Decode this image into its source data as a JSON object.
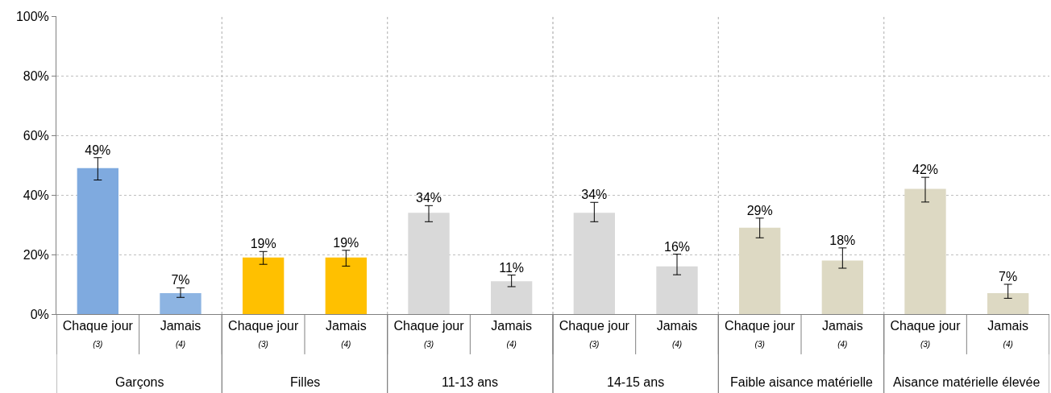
{
  "chart_data": {
    "type": "bar",
    "categories": [
      "Chaque jour\n(3)",
      "Jamais\n(4)",
      "Chaque jour\n(3)",
      "Jamais\n(4)",
      "Chaque jour\n(3)",
      "Jamais\n(4)",
      "Chaque jour\n(3)",
      "Jamais\n(4)",
      "Chaque jour\n(3)",
      "Jamais\n(4)",
      "Chaque jour\n(3)",
      "Jamais\n(4)"
    ],
    "values": [
      49,
      7,
      19,
      19,
      34,
      11,
      34,
      16,
      29,
      18,
      42,
      7
    ],
    "value_labels": [
      "49%",
      "7%",
      "19%",
      "19%",
      "34%",
      "11%",
      "34%",
      "16%",
      "29%",
      "18%",
      "42%",
      "7%"
    ],
    "colors": [
      "#7faadf",
      "#8db4e2",
      "#ffc000",
      "#ffc000",
      "#d9d9d9",
      "#d9d9d9",
      "#d9d9d9",
      "#d9d9d9",
      "#ddd9c3",
      "#ddd9c3",
      "#ddd9c3",
      "#ddd9c3"
    ],
    "errors": [
      [
        45.0,
        52.5
      ],
      [
        5.6,
        8.8
      ],
      [
        16.7,
        21.0
      ],
      [
        16.1,
        21.4
      ],
      [
        31.0,
        36.4
      ],
      [
        9.2,
        13.1
      ],
      [
        31.0,
        37.5
      ],
      [
        13.2,
        20.1
      ],
      [
        25.6,
        32.2
      ],
      [
        15.4,
        22.2
      ],
      [
        37.6,
        45.9
      ],
      [
        5.3,
        10.0
      ]
    ],
    "annotations": [
      "Garçons",
      "Filles",
      "11-13 ans",
      "14-15 ans",
      "Faible aisance matérielle",
      "Aisance matérielle élevée"
    ],
    "ylim": [
      0,
      100
    ],
    "yticks": [
      {
        "value": 0,
        "label": "0%"
      },
      {
        "value": 20,
        "label": "20%"
      },
      {
        "value": 40,
        "label": "40%"
      },
      {
        "value": 60,
        "label": "60%"
      },
      {
        "value": 80,
        "label": "80%"
      },
      {
        "value": 100,
        "label": "100%"
      }
    ],
    "grid": "y"
  }
}
